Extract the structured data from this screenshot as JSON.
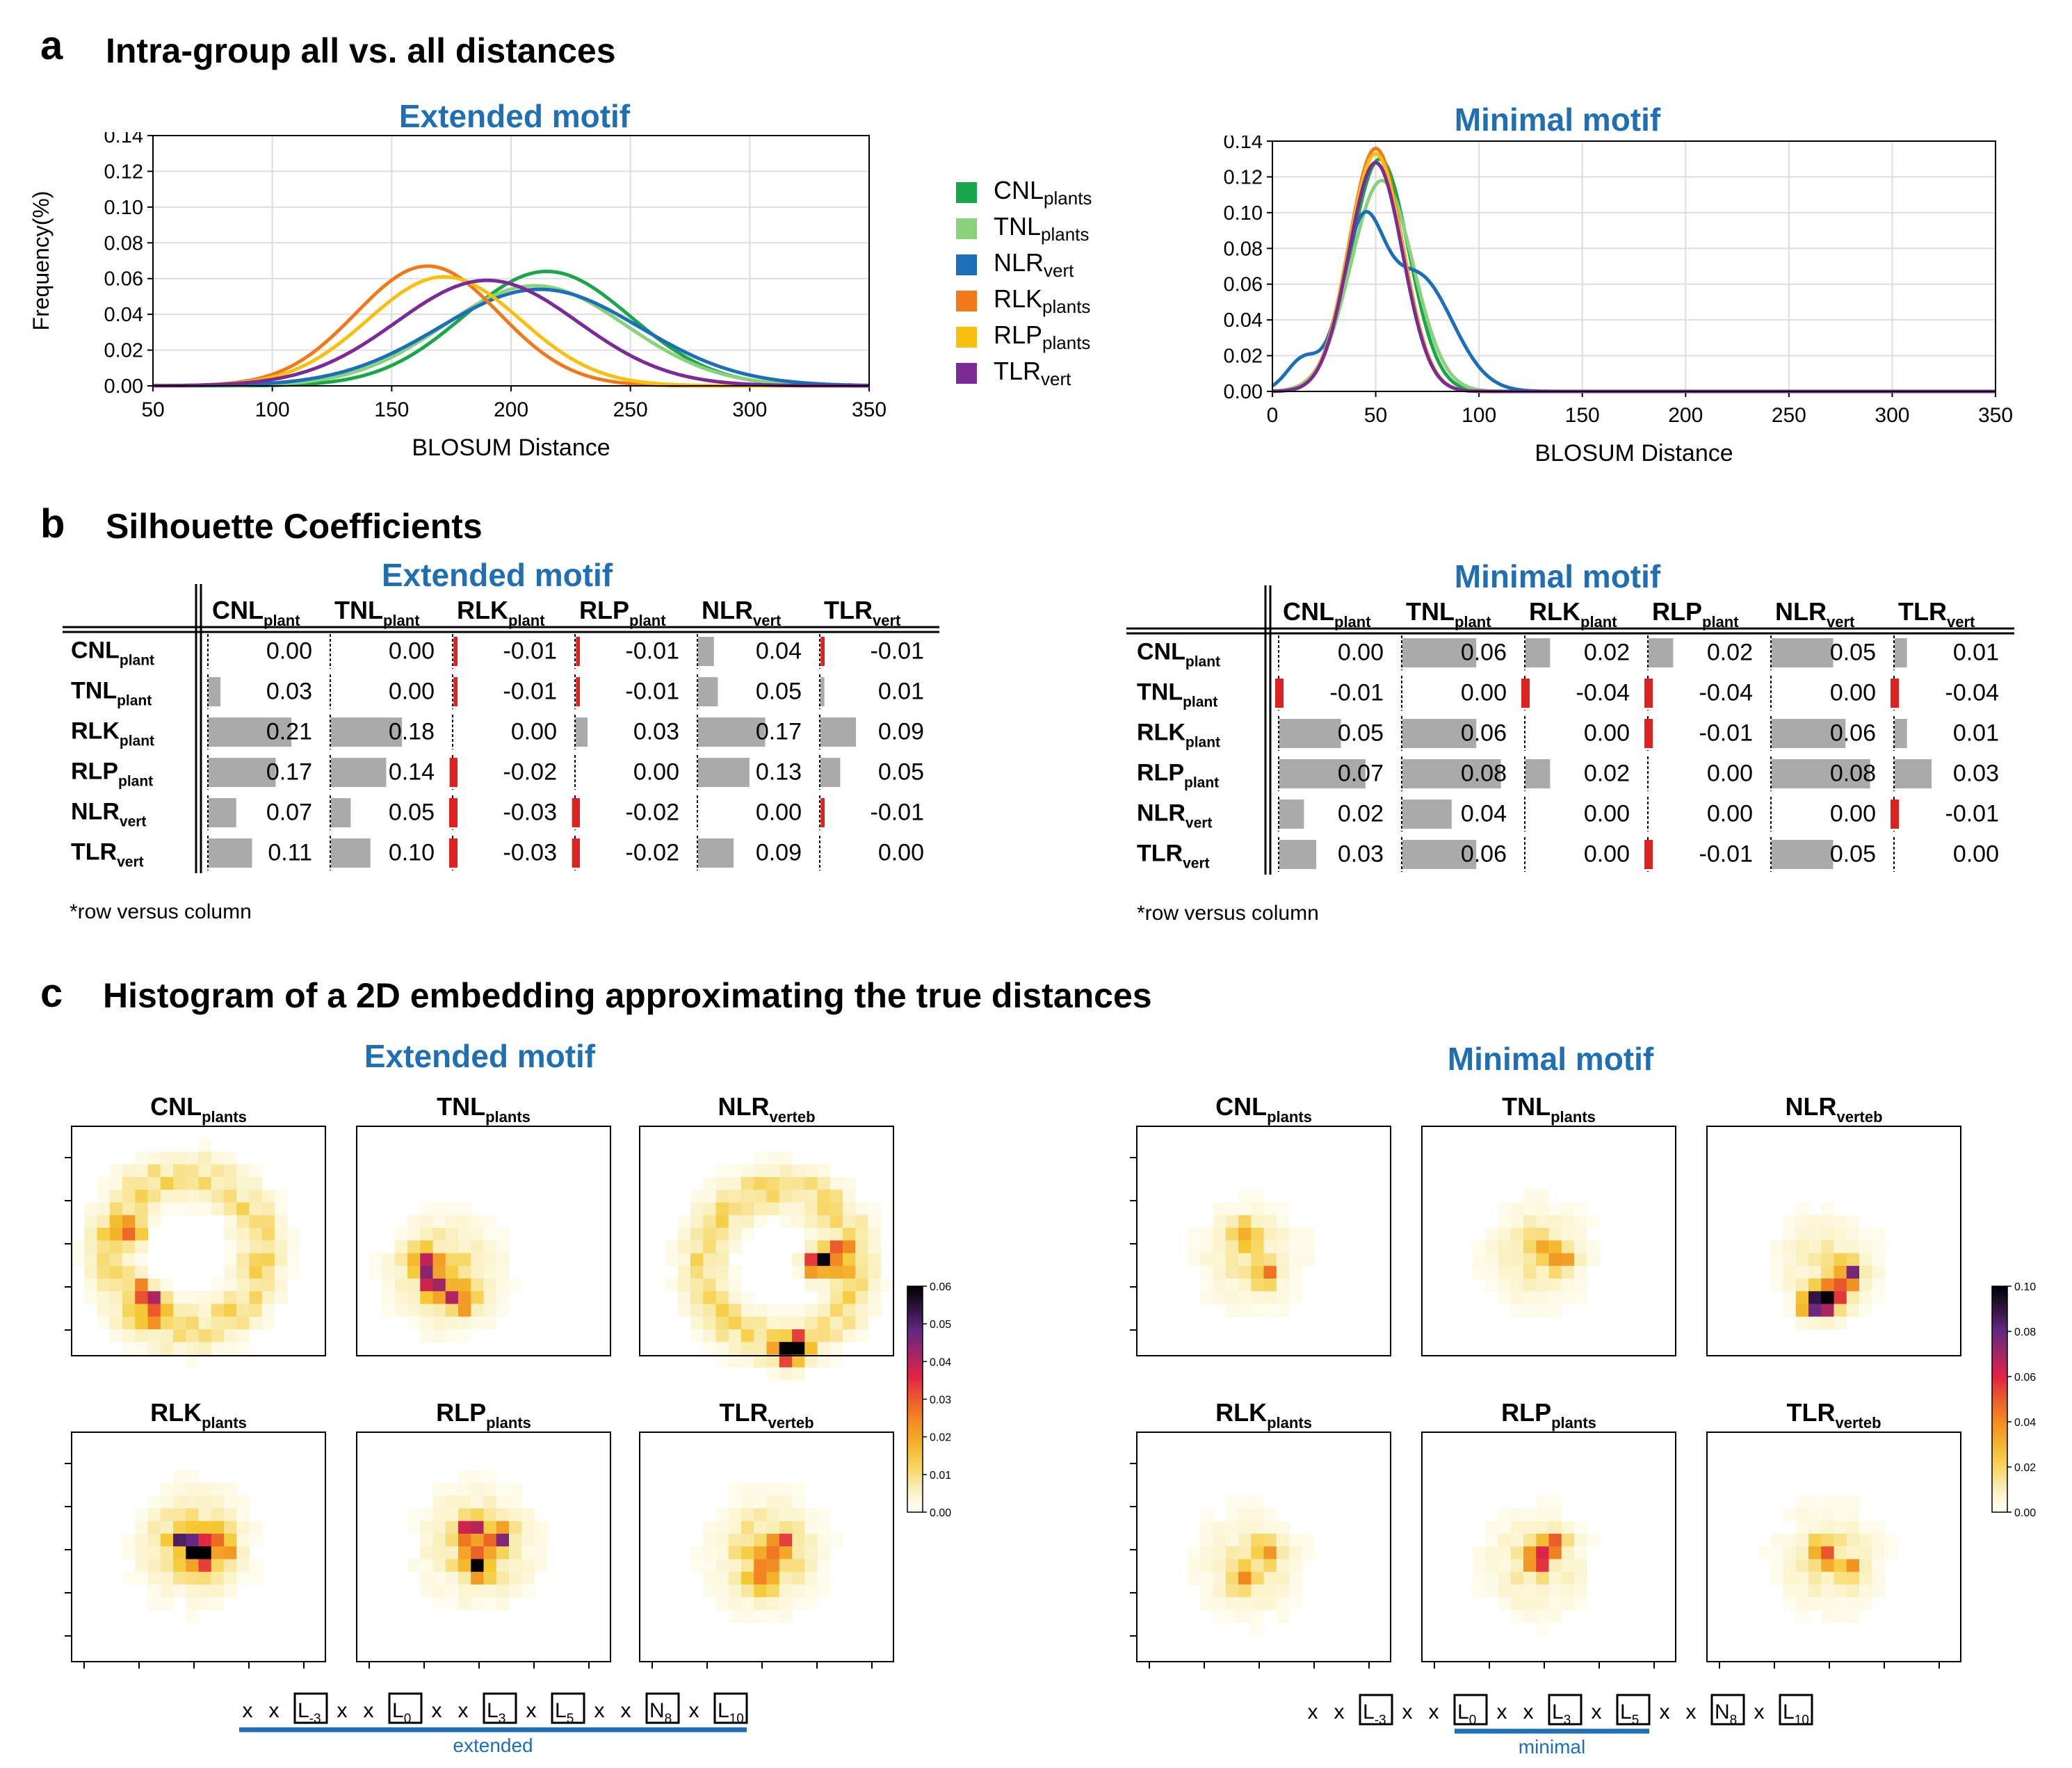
{
  "colors": {
    "CNL": "#1aa64b",
    "TNL": "#8bd17c",
    "NLR": "#1a6fb8",
    "RLK": "#f07a1a",
    "RLP": "#f7bf0f",
    "TLR": "#7b2a96",
    "motif_title": "#1f6fb2",
    "bar_pos": "#aaaaaa",
    "bar_neg": "#dd2222"
  },
  "sectionA": {
    "letter": "a",
    "title": "Intra-group all vs. all distances"
  },
  "sectionB": {
    "letter": "b",
    "title": "Silhouette Coefficients"
  },
  "sectionC": {
    "letter": "c",
    "title": "Histogram of a 2D embedding approximating the true distances"
  },
  "legend": [
    {
      "key": "CNL",
      "base": "CNL",
      "sub": "plants"
    },
    {
      "key": "TNL",
      "base": "TNL",
      "sub": "plants"
    },
    {
      "key": "NLR",
      "base": "NLR",
      "sub": "vert"
    },
    {
      "key": "RLK",
      "base": "RLK",
      "sub": "plants"
    },
    {
      "key": "RLP",
      "base": "RLP",
      "sub": "plants"
    },
    {
      "key": "TLR",
      "base": "TLR",
      "sub": "vert"
    }
  ],
  "chart_data": [
    {
      "type": "line",
      "title": "Extended motif",
      "xlabel": "BLOSUM Distance",
      "ylabel": "Frequency(%)",
      "xlim": [
        50,
        350
      ],
      "ylim": [
        0,
        0.14
      ],
      "xticks": [
        "50",
        "100",
        "150",
        "200",
        "250",
        "300",
        "350"
      ],
      "yticks": [
        "0.00",
        "0.02",
        "0.04",
        "0.06",
        "0.08",
        "0.10",
        "0.12",
        "0.14"
      ],
      "grid": true,
      "series": [
        {
          "name": "CNL",
          "peaks": [
            {
              "mu": 215,
              "sigma": 35,
              "amp": 0.064
            }
          ]
        },
        {
          "name": "TNL",
          "peaks": [
            {
              "mu": 210,
              "sigma": 38,
              "amp": 0.056
            }
          ]
        },
        {
          "name": "NLR",
          "peaks": [
            {
              "mu": 212,
              "sigma": 42,
              "amp": 0.054
            }
          ]
        },
        {
          "name": "RLK",
          "peaks": [
            {
              "mu": 165,
              "sigma": 30,
              "amp": 0.067
            }
          ]
        },
        {
          "name": "RLP",
          "peaks": [
            {
              "mu": 172,
              "sigma": 32,
              "amp": 0.061
            }
          ]
        },
        {
          "name": "TLR",
          "peaks": [
            {
              "mu": 190,
              "sigma": 38,
              "amp": 0.059
            }
          ]
        }
      ]
    },
    {
      "type": "line",
      "title": "Minimal motif",
      "xlabel": "BLOSUM Distance",
      "ylabel": "",
      "xlim": [
        0,
        350
      ],
      "ylim": [
        0,
        0.14
      ],
      "xticks": [
        "0",
        "50",
        "100",
        "150",
        "200",
        "250",
        "300",
        "350"
      ],
      "yticks": [
        "0.00",
        "0.02",
        "0.04",
        "0.06",
        "0.08",
        "0.10",
        "0.12",
        "0.14"
      ],
      "grid": true,
      "series": [
        {
          "name": "CNL",
          "peaks": [
            {
              "mu": 52,
              "sigma": 14,
              "amp": 0.13
            }
          ]
        },
        {
          "name": "TNL",
          "peaks": [
            {
              "mu": 53,
              "sigma": 15,
              "amp": 0.118
            }
          ]
        },
        {
          "name": "NLR",
          "peaks": [
            {
              "mu": 43,
              "sigma": 10,
              "amp": 0.08
            },
            {
              "mu": 70,
              "sigma": 17,
              "amp": 0.065
            },
            {
              "mu": 15,
              "sigma": 8,
              "amp": 0.018
            }
          ]
        },
        {
          "name": "RLK",
          "peaks": [
            {
              "mu": 50,
              "sigma": 13,
              "amp": 0.136
            }
          ]
        },
        {
          "name": "RLP",
          "peaks": [
            {
              "mu": 50,
              "sigma": 13,
              "amp": 0.133
            }
          ]
        },
        {
          "name": "TLR",
          "peaks": [
            {
              "mu": 50,
              "sigma": 13,
              "amp": 0.128
            }
          ]
        }
      ]
    },
    {
      "type": "table",
      "title": "Extended motif",
      "columns": [
        {
          "base": "CNL",
          "sub": "plant"
        },
        {
          "base": "TNL",
          "sub": "plant"
        },
        {
          "base": "RLK",
          "sub": "plant"
        },
        {
          "base": "RLP",
          "sub": "plant"
        },
        {
          "base": "NLR",
          "sub": "vert"
        },
        {
          "base": "TLR",
          "sub": "vert"
        }
      ],
      "rows": [
        {
          "base": "CNL",
          "sub": "plant",
          "values": [
            0.0,
            0.0,
            -0.01,
            -0.01,
            0.04,
            -0.01
          ]
        },
        {
          "base": "TNL",
          "sub": "plant",
          "values": [
            0.03,
            0.0,
            -0.01,
            -0.01,
            0.05,
            0.01
          ]
        },
        {
          "base": "RLK",
          "sub": "plant",
          "values": [
            0.21,
            0.18,
            0.0,
            0.03,
            0.17,
            0.09
          ]
        },
        {
          "base": "RLP",
          "sub": "plant",
          "values": [
            0.17,
            0.14,
            -0.02,
            0.0,
            0.13,
            0.05
          ]
        },
        {
          "base": "NLR",
          "sub": "vert",
          "values": [
            0.07,
            0.05,
            -0.03,
            -0.02,
            0.0,
            -0.01
          ]
        },
        {
          "base": "TLR",
          "sub": "vert",
          "values": [
            0.11,
            0.1,
            -0.03,
            -0.02,
            0.09,
            0.0
          ]
        }
      ],
      "note": "*row versus column"
    },
    {
      "type": "table",
      "title": "Minimal motif",
      "columns": [
        {
          "base": "CNL",
          "sub": "plant"
        },
        {
          "base": "TNL",
          "sub": "plant"
        },
        {
          "base": "RLK",
          "sub": "plant"
        },
        {
          "base": "RLP",
          "sub": "plant"
        },
        {
          "base": "NLR",
          "sub": "vert"
        },
        {
          "base": "TLR",
          "sub": "vert"
        }
      ],
      "rows": [
        {
          "base": "CNL",
          "sub": "plant",
          "values": [
            0.0,
            0.06,
            0.02,
            0.02,
            0.05,
            0.01
          ]
        },
        {
          "base": "TNL",
          "sub": "plant",
          "values": [
            -0.01,
            0.0,
            -0.04,
            -0.04,
            0.0,
            -0.04
          ]
        },
        {
          "base": "RLK",
          "sub": "plant",
          "values": [
            0.05,
            0.06,
            0.0,
            -0.01,
            0.06,
            0.01
          ]
        },
        {
          "base": "RLP",
          "sub": "plant",
          "values": [
            0.07,
            0.08,
            0.02,
            0.0,
            0.08,
            0.03
          ]
        },
        {
          "base": "NLR",
          "sub": "vert",
          "values": [
            0.02,
            0.04,
            0.0,
            0.0,
            0.0,
            -0.01
          ]
        },
        {
          "base": "TLR",
          "sub": "vert",
          "values": [
            0.03,
            0.06,
            0.0,
            -0.01,
            0.05,
            0.0
          ]
        }
      ],
      "note": "*row versus column"
    },
    {
      "type": "heatmap",
      "title": "Extended motif",
      "colorbar_ticks": [
        "0.00",
        "0.01",
        "0.02",
        "0.03",
        "0.04",
        "0.05",
        "0.06"
      ],
      "vmax": 0.06,
      "panels": [
        {
          "base": "CNL",
          "sub": "plants",
          "shape": "ring",
          "cx": 0.45,
          "cy": 0.5,
          "hot": [
            [
              0.22,
              0.42,
              0.03
            ],
            [
              0.33,
              0.72,
              0.03
            ],
            [
              0.28,
              0.66,
              0.028
            ]
          ]
        },
        {
          "base": "TNL",
          "sub": "plants",
          "shape": "blob",
          "cx": 0.35,
          "cy": 0.58,
          "hot": [
            [
              0.32,
              0.62,
              0.04
            ],
            [
              0.4,
              0.68,
              0.033
            ],
            [
              0.26,
              0.55,
              0.03
            ]
          ]
        },
        {
          "base": "NLR",
          "sub": "verteb",
          "shape": "ring",
          "cx": 0.55,
          "cy": 0.55,
          "hot": [
            [
              0.6,
              0.88,
              0.06
            ],
            [
              0.7,
              0.54,
              0.045
            ],
            [
              0.78,
              0.52,
              0.035
            ]
          ]
        },
        {
          "base": "RLK",
          "sub": "plants",
          "shape": "blob",
          "cx": 0.48,
          "cy": 0.44,
          "hot": [
            [
              0.5,
              0.48,
              0.045
            ],
            [
              0.45,
              0.42,
              0.035
            ],
            [
              0.58,
              0.45,
              0.03
            ]
          ]
        },
        {
          "base": "RLP",
          "sub": "plants",
          "shape": "blob",
          "cx": 0.48,
          "cy": 0.45,
          "hot": [
            [
              0.48,
              0.52,
              0.035
            ],
            [
              0.55,
              0.42,
              0.03
            ],
            [
              0.45,
              0.4,
              0.028
            ]
          ]
        },
        {
          "base": "TLR",
          "sub": "verteb",
          "shape": "blob",
          "cx": 0.5,
          "cy": 0.48,
          "hot": [
            [
              0.5,
              0.56,
              0.033
            ],
            [
              0.55,
              0.45,
              0.026
            ]
          ]
        }
      ],
      "motif_label": "extended",
      "motif_tokens": [
        {
          "t": "x"
        },
        {
          "t": "x"
        },
        {
          "t": "L",
          "s": "-3",
          "box": true
        },
        {
          "t": "x"
        },
        {
          "t": "x"
        },
        {
          "t": "L",
          "s": "0",
          "box": true
        },
        {
          "t": "x"
        },
        {
          "t": "x"
        },
        {
          "t": "L",
          "s": "3",
          "box": true
        },
        {
          "t": "x"
        },
        {
          "t": "L",
          "s": "5",
          "box": true
        },
        {
          "t": "x"
        },
        {
          "t": "x"
        },
        {
          "t": "N",
          "s": "8",
          "box": true
        },
        {
          "t": "x"
        },
        {
          "t": "L",
          "s": "10",
          "box": true
        }
      ],
      "motif_span": [
        0,
        15
      ]
    },
    {
      "type": "heatmap",
      "title": "Minimal motif",
      "colorbar_ticks": [
        "0.00",
        "0.02",
        "0.04",
        "0.06",
        "0.08",
        "0.10"
      ],
      "vmax": 0.1,
      "panels": [
        {
          "base": "CNL",
          "sub": "plants",
          "shape": "blob",
          "cx": 0.45,
          "cy": 0.52,
          "hot": [
            [
              0.5,
              0.58,
              0.03
            ],
            [
              0.42,
              0.42,
              0.025
            ]
          ]
        },
        {
          "base": "TNL",
          "sub": "plants",
          "shape": "blob",
          "cx": 0.45,
          "cy": 0.5,
          "hot": [
            [
              0.45,
              0.48,
              0.03
            ],
            [
              0.55,
              0.52,
              0.025
            ]
          ]
        },
        {
          "base": "NLR",
          "sub": "verteb",
          "shape": "blob",
          "cx": 0.48,
          "cy": 0.55,
          "hot": [
            [
              0.48,
              0.68,
              0.1
            ],
            [
              0.55,
              0.58,
              0.06
            ],
            [
              0.42,
              0.7,
              0.05
            ]
          ]
        },
        {
          "base": "RLK",
          "sub": "plants",
          "shape": "blob",
          "cx": 0.45,
          "cy": 0.52,
          "hot": [
            [
              0.42,
              0.58,
              0.025
            ],
            [
              0.5,
              0.48,
              0.022
            ]
          ]
        },
        {
          "base": "RLP",
          "sub": "plants",
          "shape": "blob",
          "cx": 0.45,
          "cy": 0.52,
          "hot": [
            [
              0.45,
              0.5,
              0.045
            ],
            [
              0.52,
              0.45,
              0.035
            ]
          ]
        },
        {
          "base": "TLR",
          "sub": "verteb",
          "shape": "blob",
          "cx": 0.48,
          "cy": 0.5,
          "hot": [
            [
              0.45,
              0.48,
              0.04
            ],
            [
              0.55,
              0.55,
              0.03
            ]
          ]
        }
      ],
      "motif_label": "minimal",
      "motif_tokens": [
        {
          "t": "x"
        },
        {
          "t": "x"
        },
        {
          "t": "L",
          "s": "-3",
          "box": true
        },
        {
          "t": "x"
        },
        {
          "t": "x"
        },
        {
          "t": "L",
          "s": "0",
          "box": true
        },
        {
          "t": "x"
        },
        {
          "t": "x"
        },
        {
          "t": "L",
          "s": "3",
          "box": true
        },
        {
          "t": "x"
        },
        {
          "t": "L",
          "s": "5",
          "box": true
        },
        {
          "t": "x"
        },
        {
          "t": "x"
        },
        {
          "t": "N",
          "s": "8",
          "box": true
        },
        {
          "t": "x"
        },
        {
          "t": "L",
          "s": "10",
          "box": true
        }
      ],
      "motif_span": [
        5,
        10
      ]
    }
  ]
}
